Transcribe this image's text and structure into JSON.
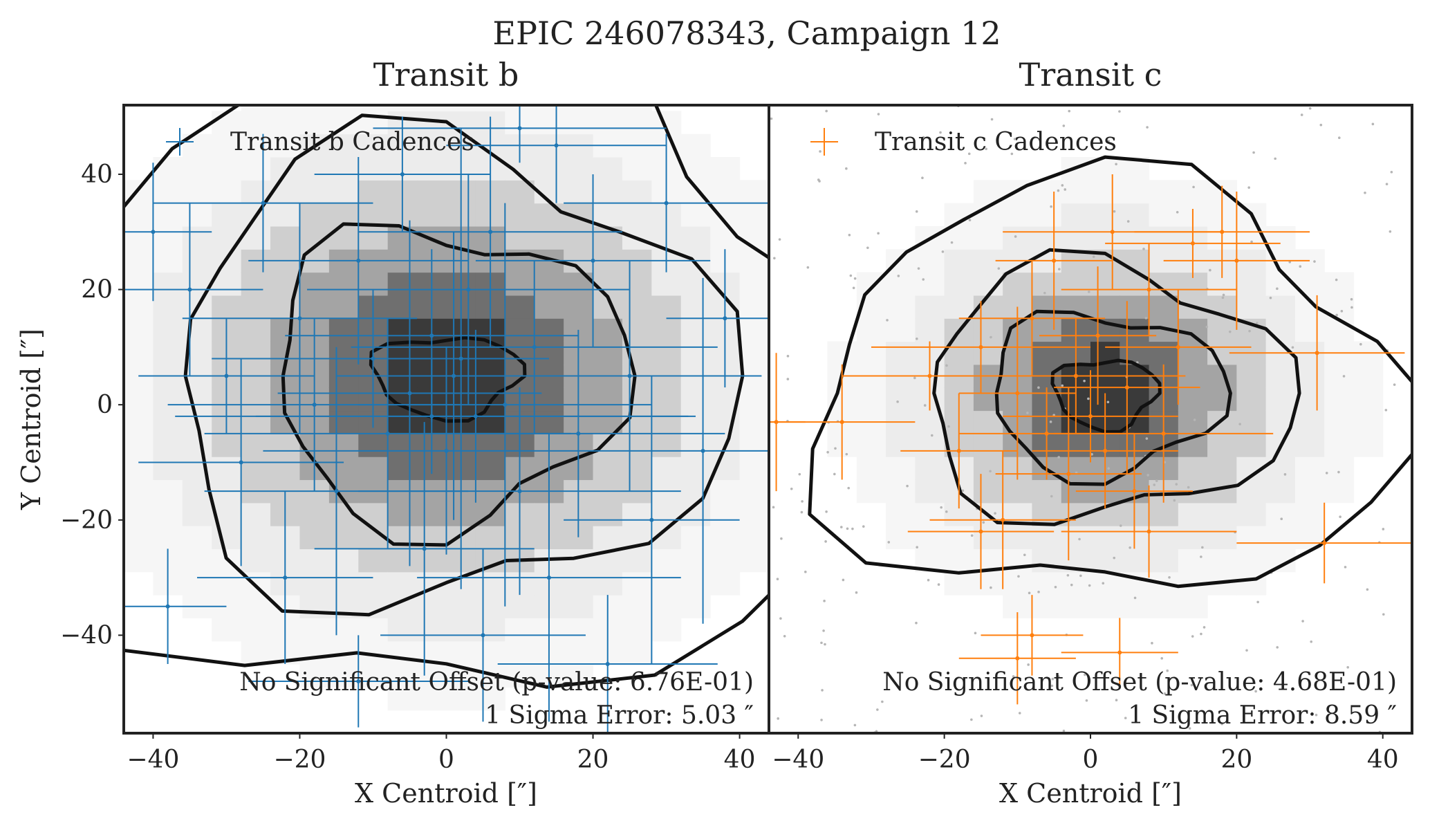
{
  "figure_title": "EPIC 246078343, Campaign 12",
  "chart_data": [
    {
      "type": "scatter",
      "title": "Transit b",
      "xlabel": "X Centroid [″]",
      "ylabel": "Y Centroid [″]",
      "xlim": [
        -44,
        44
      ],
      "ylim": [
        -57,
        52
      ],
      "xticks": [
        -40,
        -20,
        0,
        20,
        40
      ],
      "yticks": [
        -40,
        -20,
        0,
        20,
        40
      ],
      "xtick_labels": [
        "−40",
        "−20",
        "0",
        "20",
        "40"
      ],
      "ytick_labels": [
        "−40",
        "−20",
        "0",
        "20",
        "40"
      ],
      "legend": "Transit b Cadences",
      "legend_position": "top-left",
      "color": "#1f77b4",
      "annotation_line1": "No Significant Offset (p-value: 6.76E-01)",
      "annotation_line2": "1 Sigma Error: 5.03 ″",
      "p_value": 0.676,
      "sigma_error_arcsec": 5.03,
      "points": [
        {
          "x": -40,
          "y": 30,
          "xerr": 8,
          "yerr": 12
        },
        {
          "x": -35,
          "y": 20,
          "xerr": 10,
          "yerr": 15
        },
        {
          "x": -30,
          "y": 5,
          "xerr": 12,
          "yerr": 10
        },
        {
          "x": -28,
          "y": -10,
          "xerr": 14,
          "yerr": 18
        },
        {
          "x": -25,
          "y": 35,
          "xerr": 15,
          "yerr": 12
        },
        {
          "x": -22,
          "y": -30,
          "xerr": 12,
          "yerr": 15
        },
        {
          "x": -20,
          "y": 15,
          "xerr": 16,
          "yerr": 20
        },
        {
          "x": -18,
          "y": 0,
          "xerr": 20,
          "yerr": 15
        },
        {
          "x": -15,
          "y": -15,
          "xerr": 18,
          "yerr": 25
        },
        {
          "x": -12,
          "y": 25,
          "xerr": 15,
          "yerr": 18
        },
        {
          "x": -10,
          "y": 8,
          "xerr": 22,
          "yerr": 12
        },
        {
          "x": -8,
          "y": -5,
          "xerr": 25,
          "yerr": 20
        },
        {
          "x": -6,
          "y": 40,
          "xerr": 12,
          "yerr": 10
        },
        {
          "x": -5,
          "y": 2,
          "xerr": 18,
          "yerr": 30
        },
        {
          "x": -3,
          "y": -25,
          "xerr": 15,
          "yerr": 22
        },
        {
          "x": -2,
          "y": 12,
          "xerr": 20,
          "yerr": 15
        },
        {
          "x": 0,
          "y": -8,
          "xerr": 25,
          "yerr": 18
        },
        {
          "x": 1,
          "y": 5,
          "xerr": 16,
          "yerr": 25
        },
        {
          "x": 3,
          "y": 20,
          "xerr": 22,
          "yerr": 20
        },
        {
          "x": 4,
          "y": -2,
          "xerr": 30,
          "yerr": 15
        },
        {
          "x": 5,
          "y": -40,
          "xerr": 14,
          "yerr": 15
        },
        {
          "x": 6,
          "y": 30,
          "xerr": 18,
          "yerr": 20
        },
        {
          "x": 8,
          "y": 0,
          "xerr": 20,
          "yerr": 35
        },
        {
          "x": 10,
          "y": -15,
          "xerr": 22,
          "yerr": 18
        },
        {
          "x": 12,
          "y": 10,
          "xerr": 25,
          "yerr": 15
        },
        {
          "x": 14,
          "y": -30,
          "xerr": 18,
          "yerr": 25
        },
        {
          "x": 15,
          "y": 45,
          "xerr": 15,
          "yerr": 10
        },
        {
          "x": 18,
          "y": -5,
          "xerr": 20,
          "yerr": 18
        },
        {
          "x": 20,
          "y": 25,
          "xerr": 16,
          "yerr": 15
        },
        {
          "x": 22,
          "y": -45,
          "xerr": 15,
          "yerr": 12
        },
        {
          "x": 25,
          "y": 5,
          "xerr": 18,
          "yerr": 20
        },
        {
          "x": 28,
          "y": -20,
          "xerr": 12,
          "yerr": 25
        },
        {
          "x": 30,
          "y": 35,
          "xerr": 14,
          "yerr": 12
        },
        {
          "x": 35,
          "y": -8,
          "xerr": 10,
          "yerr": 30
        },
        {
          "x": 38,
          "y": 15,
          "xerr": 8,
          "yerr": 12
        },
        {
          "x": -38,
          "y": -35,
          "xerr": 8,
          "yerr": 10
        },
        {
          "x": -12,
          "y": -48,
          "xerr": 15,
          "yerr": 8
        },
        {
          "x": 10,
          "y": 48,
          "xerr": 20,
          "yerr": 6
        },
        {
          "x": -2,
          "y": -2,
          "xerr": 35,
          "yerr": 10
        },
        {
          "x": 2,
          "y": 8,
          "xerr": 12,
          "yerr": 40
        }
      ]
    },
    {
      "type": "scatter",
      "title": "Transit c",
      "xlabel": "X Centroid [″]",
      "ylabel": "",
      "xlim": [
        -44,
        44
      ],
      "ylim": [
        -57,
        52
      ],
      "xticks": [
        -40,
        -20,
        0,
        20,
        40
      ],
      "xtick_labels": [
        "−40",
        "−20",
        "0",
        "20",
        "40"
      ],
      "legend": "Transit c Cadences",
      "legend_position": "top-left",
      "color": "#ff7f0e",
      "annotation_line1": "No Significant Offset (p-value: 4.68E-01)",
      "annotation_line2": "1 Sigma Error: 8.59 ″",
      "p_value": 0.468,
      "sigma_error_arcsec": 8.59,
      "points": [
        {
          "x": -43,
          "y": -3,
          "xerr": 4,
          "yerr": 12
        },
        {
          "x": -34,
          "y": -3,
          "xerr": 10,
          "yerr": 10
        },
        {
          "x": -22,
          "y": 5,
          "xerr": 12,
          "yerr": 6
        },
        {
          "x": -18,
          "y": -8,
          "xerr": 8,
          "yerr": 10
        },
        {
          "x": -15,
          "y": 10,
          "xerr": 15,
          "yerr": 8
        },
        {
          "x": -12,
          "y": -20,
          "xerr": 10,
          "yerr": 12
        },
        {
          "x": -10,
          "y": 2,
          "xerr": 8,
          "yerr": 15
        },
        {
          "x": -8,
          "y": 15,
          "xerr": 10,
          "yerr": 10
        },
        {
          "x": -6,
          "y": -5,
          "xerr": 12,
          "yerr": 8
        },
        {
          "x": -5,
          "y": 25,
          "xerr": 8,
          "yerr": 12
        },
        {
          "x": -3,
          "y": -12,
          "xerr": 10,
          "yerr": 15
        },
        {
          "x": -2,
          "y": 5,
          "xerr": 15,
          "yerr": 10
        },
        {
          "x": 0,
          "y": -2,
          "xerr": 12,
          "yerr": 8
        },
        {
          "x": 1,
          "y": 12,
          "xerr": 8,
          "yerr": 12
        },
        {
          "x": 2,
          "y": -8,
          "xerr": 10,
          "yerr": 10
        },
        {
          "x": 3,
          "y": 30,
          "xerr": 15,
          "yerr": 10
        },
        {
          "x": 5,
          "y": 3,
          "xerr": 10,
          "yerr": 15
        },
        {
          "x": 6,
          "y": -15,
          "xerr": 8,
          "yerr": 10
        },
        {
          "x": 8,
          "y": 20,
          "xerr": 12,
          "yerr": 8
        },
        {
          "x": 10,
          "y": -5,
          "xerr": 15,
          "yerr": 12
        },
        {
          "x": 12,
          "y": 10,
          "xerr": 10,
          "yerr": 10
        },
        {
          "x": 14,
          "y": 28,
          "xerr": 12,
          "yerr": 6
        },
        {
          "x": 18,
          "y": 30,
          "xerr": 12,
          "yerr": 8
        },
        {
          "x": 20,
          "y": 25,
          "xerr": 10,
          "yerr": 12
        },
        {
          "x": 31,
          "y": 9,
          "xerr": 12,
          "yerr": 10
        },
        {
          "x": 32,
          "y": -24,
          "xerr": 12,
          "yerr": 7
        },
        {
          "x": -8,
          "y": -40,
          "xerr": 7,
          "yerr": 7
        },
        {
          "x": -10,
          "y": -44,
          "xerr": 8,
          "yerr": 8
        },
        {
          "x": 4,
          "y": -43,
          "xerr": 8,
          "yerr": 6
        },
        {
          "x": -15,
          "y": -22,
          "xerr": 10,
          "yerr": 10
        },
        {
          "x": 8,
          "y": -22,
          "xerr": 12,
          "yerr": 8
        }
      ]
    }
  ]
}
